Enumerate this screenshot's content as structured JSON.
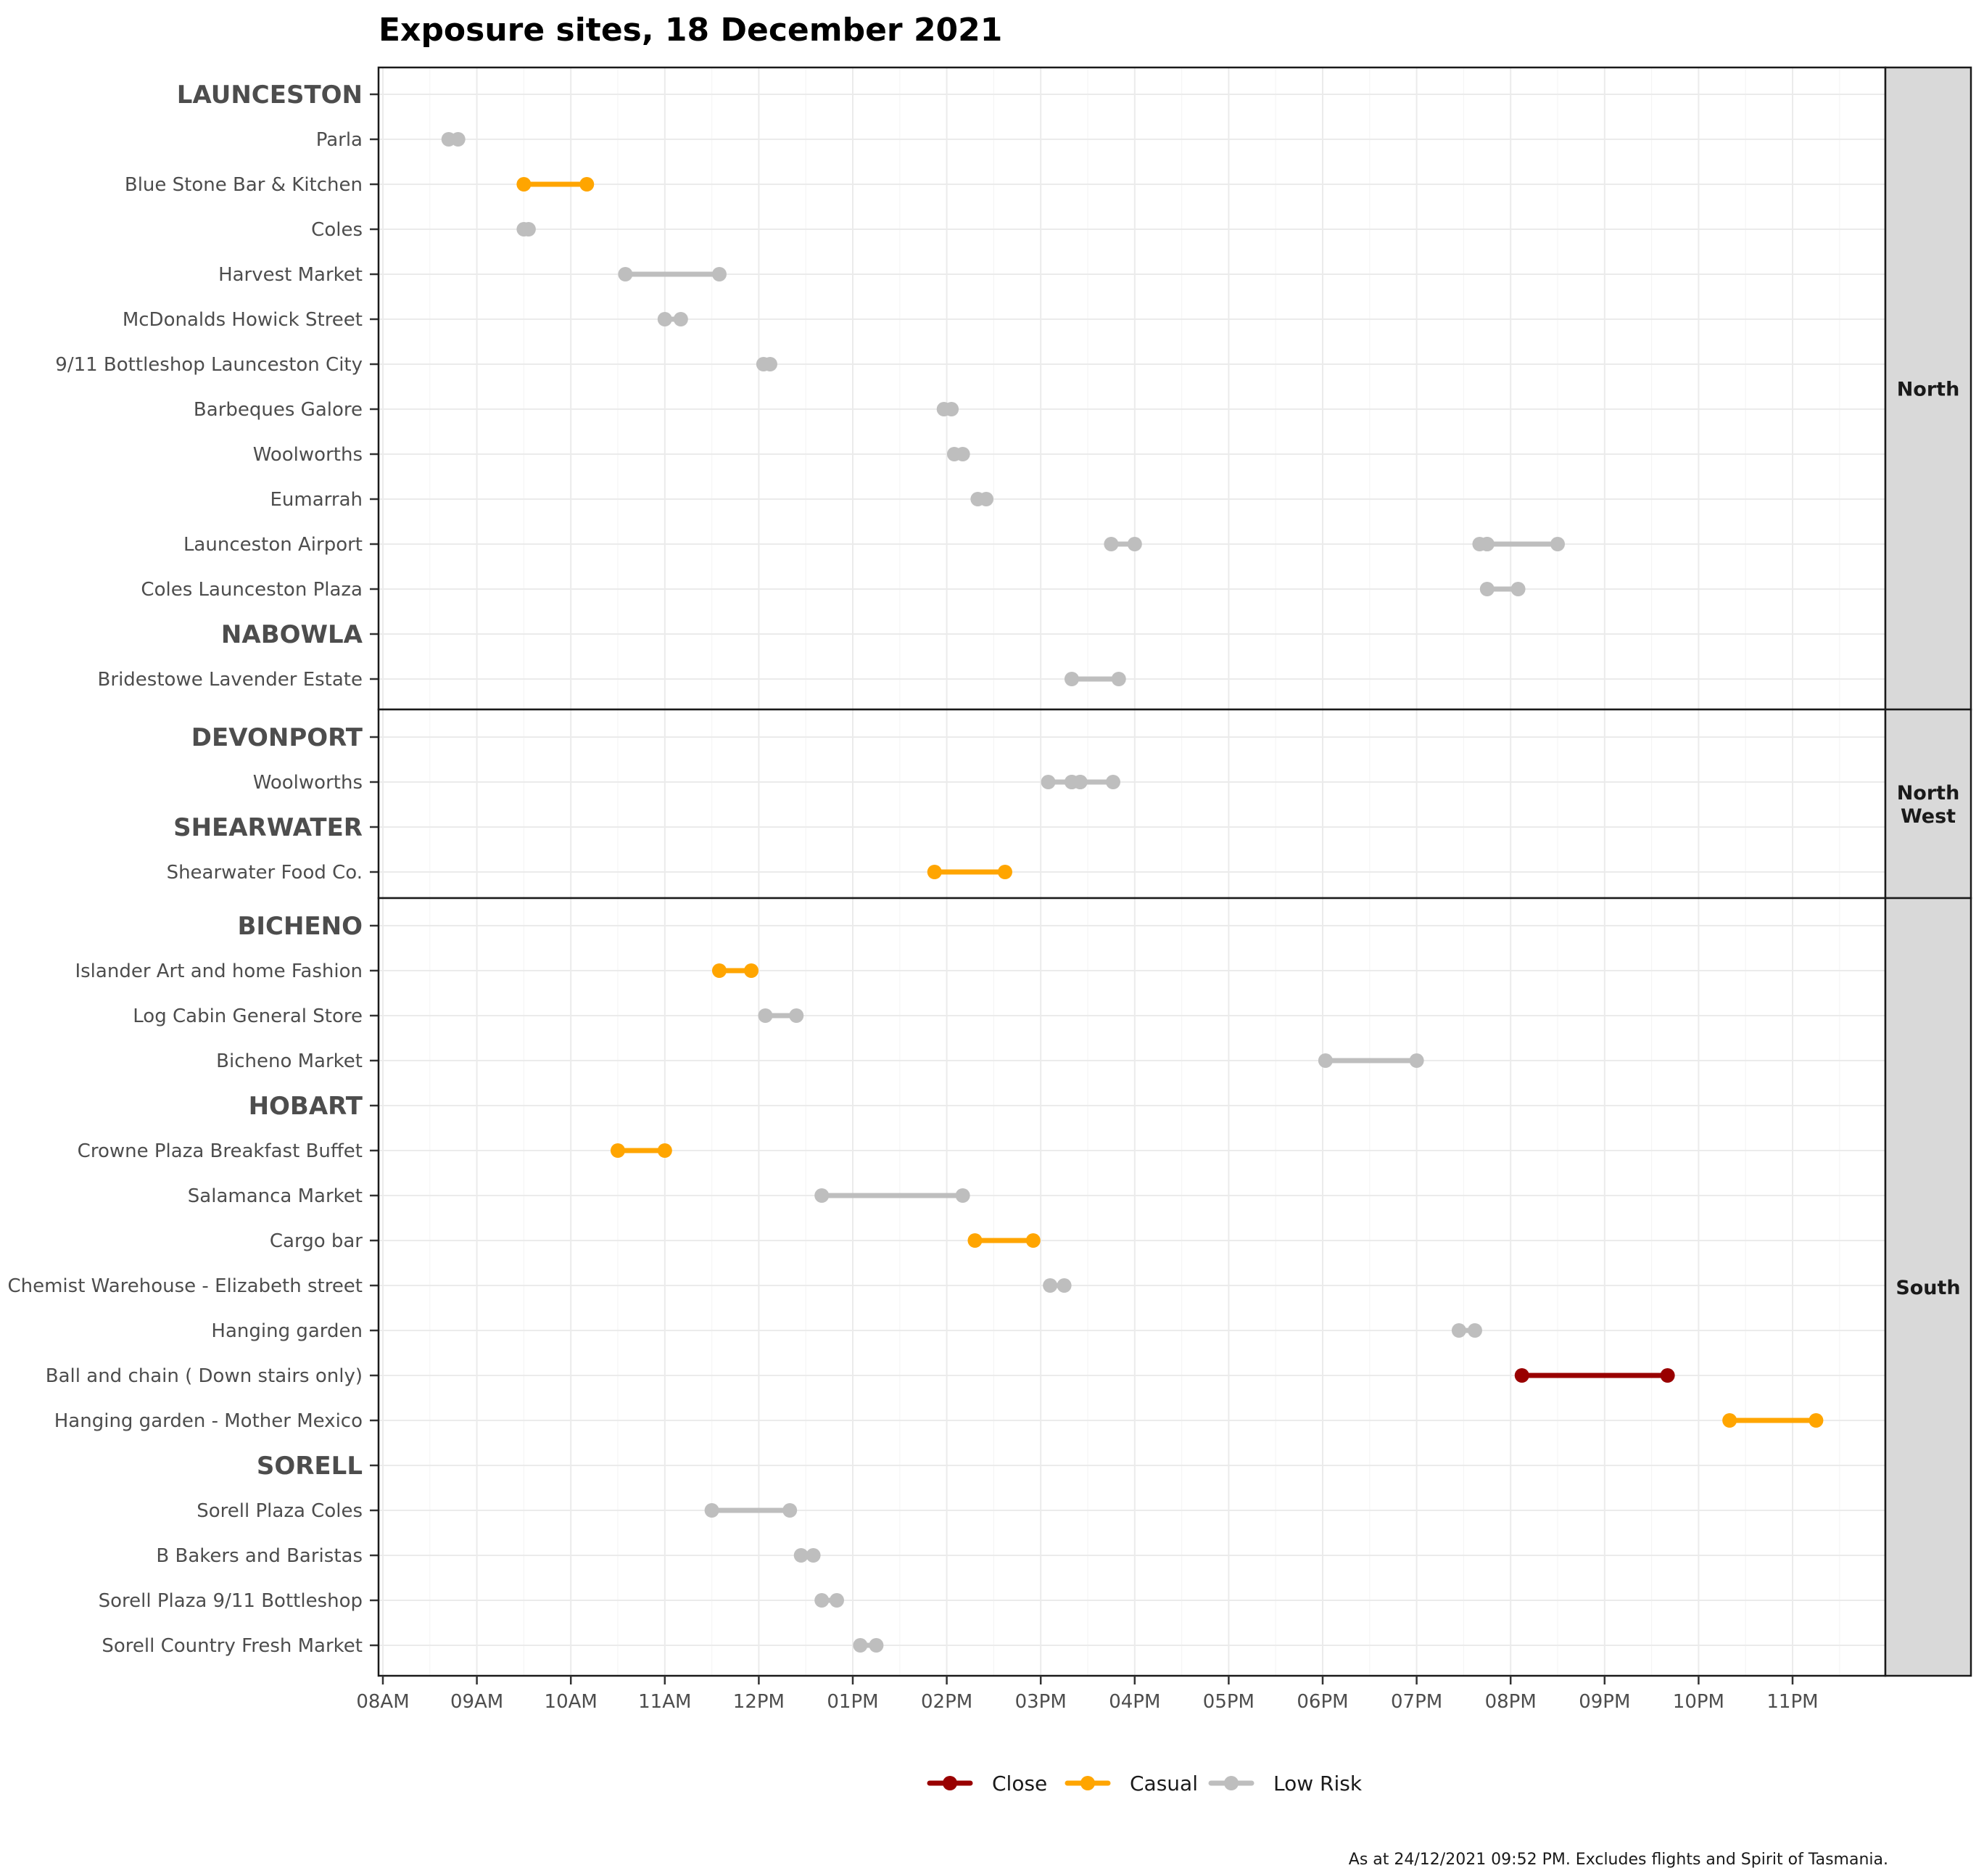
{
  "chart_data": {
    "type": "dumbbell",
    "title": "Exposure sites, 18 December 2021",
    "caption": "As at 24/12/2021 09:52 PM. Excludes flights and Spirit of Tasmania.",
    "x_axis": {
      "ticks": [
        "08AM",
        "09AM",
        "10AM",
        "11AM",
        "12PM",
        "01PM",
        "02PM",
        "03PM",
        "04PM",
        "05PM",
        "06PM",
        "07PM",
        "08PM",
        "09PM",
        "10PM",
        "11PM"
      ],
      "xlim_hours": [
        8,
        24
      ],
      "grid": true
    },
    "legend": {
      "position": "bottom",
      "items": [
        {
          "key": "close",
          "label": "Close",
          "color": "#990000"
        },
        {
          "key": "casual",
          "label": "Casual",
          "color": "#FFA500"
        },
        {
          "key": "low",
          "label": "Low Risk",
          "color": "#BEBEBE"
        }
      ]
    },
    "panels": [
      {
        "label": [
          "North"
        ],
        "rows": [
          {
            "kind": "town",
            "label": "LAUNCESTON"
          },
          {
            "kind": "site",
            "label": "Parla",
            "level": "low",
            "segments": [
              [
                8.7,
                8.8
              ]
            ]
          },
          {
            "kind": "site",
            "label": "Blue Stone Bar & Kitchen",
            "level": "casual",
            "segments": [
              [
                9.5,
                10.17
              ]
            ]
          },
          {
            "kind": "site",
            "label": "Coles",
            "level": "low",
            "segments": [
              [
                9.5,
                9.55
              ]
            ]
          },
          {
            "kind": "site",
            "label": "Harvest Market",
            "level": "low",
            "segments": [
              [
                10.58,
                11.58
              ]
            ]
          },
          {
            "kind": "site",
            "label": "McDonalds Howick Street",
            "level": "low",
            "segments": [
              [
                11.0,
                11.17
              ]
            ]
          },
          {
            "kind": "site",
            "label": "9/11 Bottleshop Launceston City",
            "level": "low",
            "segments": [
              [
                12.05,
                12.12
              ]
            ]
          },
          {
            "kind": "site",
            "label": "Barbeques Galore",
            "level": "low",
            "segments": [
              [
                13.97,
                14.05
              ]
            ]
          },
          {
            "kind": "site",
            "label": "Woolworths",
            "level": "low",
            "segments": [
              [
                14.08,
                14.17
              ]
            ]
          },
          {
            "kind": "site",
            "label": "Eumarrah",
            "level": "low",
            "segments": [
              [
                14.33,
                14.42
              ]
            ]
          },
          {
            "kind": "site",
            "label": "Launceston Airport",
            "level": "low",
            "segments": [
              [
                15.75,
                16.0
              ],
              [
                19.67,
                19.75
              ],
              [
                19.75,
                20.5
              ]
            ]
          },
          {
            "kind": "site",
            "label": "Coles Launceston Plaza",
            "level": "low",
            "segments": [
              [
                19.75,
                20.08
              ]
            ]
          },
          {
            "kind": "town",
            "label": "NABOWLA"
          },
          {
            "kind": "site",
            "label": "Bridestowe Lavender Estate",
            "level": "low",
            "segments": [
              [
                15.33,
                15.83
              ]
            ]
          }
        ]
      },
      {
        "label": [
          "North",
          "West"
        ],
        "rows": [
          {
            "kind": "town",
            "label": "DEVONPORT"
          },
          {
            "kind": "site",
            "label": "Woolworths",
            "level": "low",
            "segments": [
              [
                15.08,
                15.33
              ],
              [
                15.33,
                15.42
              ],
              [
                15.42,
                15.77
              ]
            ]
          },
          {
            "kind": "town",
            "label": "SHEARWATER"
          },
          {
            "kind": "site",
            "label": "Shearwater Food Co.",
            "level": "casual",
            "segments": [
              [
                13.87,
                14.62
              ]
            ]
          }
        ]
      },
      {
        "label": [
          "South"
        ],
        "rows": [
          {
            "kind": "town",
            "label": "BICHENO"
          },
          {
            "kind": "site",
            "label": "Islander Art and home Fashion",
            "level": "casual",
            "segments": [
              [
                11.58,
                11.92
              ]
            ]
          },
          {
            "kind": "site",
            "label": "Log Cabin General Store",
            "level": "low",
            "segments": [
              [
                12.07,
                12.4
              ]
            ]
          },
          {
            "kind": "site",
            "label": "Bicheno Market",
            "level": "low",
            "segments": [
              [
                18.03,
                19.0
              ]
            ]
          },
          {
            "kind": "town",
            "label": "HOBART"
          },
          {
            "kind": "site",
            "label": "Crowne Plaza Breakfast Buffet",
            "level": "casual",
            "segments": [
              [
                10.5,
                11.0
              ]
            ]
          },
          {
            "kind": "site",
            "label": "Salamanca Market",
            "level": "low",
            "segments": [
              [
                12.67,
                14.17
              ]
            ]
          },
          {
            "kind": "site",
            "label": "Cargo bar",
            "level": "casual",
            "segments": [
              [
                14.3,
                14.92
              ]
            ]
          },
          {
            "kind": "site",
            "label": "Chemist Warehouse - Elizabeth street",
            "level": "low",
            "segments": [
              [
                15.1,
                15.25
              ]
            ]
          },
          {
            "kind": "site",
            "label": "Hanging garden",
            "level": "low",
            "segments": [
              [
                19.45,
                19.62
              ]
            ]
          },
          {
            "kind": "site",
            "label": "Ball and chain ( Down stairs only)",
            "level": "close",
            "segments": [
              [
                20.12,
                21.67
              ]
            ]
          },
          {
            "kind": "site",
            "label": "Hanging garden - Mother Mexico",
            "level": "casual",
            "segments": [
              [
                22.33,
                23.25
              ]
            ]
          },
          {
            "kind": "town",
            "label": "SORELL"
          },
          {
            "kind": "site",
            "label": "Sorell Plaza Coles",
            "level": "low",
            "segments": [
              [
                11.5,
                12.33
              ]
            ]
          },
          {
            "kind": "site",
            "label": "B Bakers and Baristas",
            "level": "low",
            "segments": [
              [
                12.45,
                12.58
              ]
            ]
          },
          {
            "kind": "site",
            "label": "Sorell Plaza 9/11 Bottleshop",
            "level": "low",
            "segments": [
              [
                12.67,
                12.83
              ]
            ]
          },
          {
            "kind": "site",
            "label": "Sorell Country Fresh Market",
            "level": "low",
            "segments": [
              [
                13.08,
                13.25
              ]
            ]
          }
        ]
      }
    ]
  }
}
